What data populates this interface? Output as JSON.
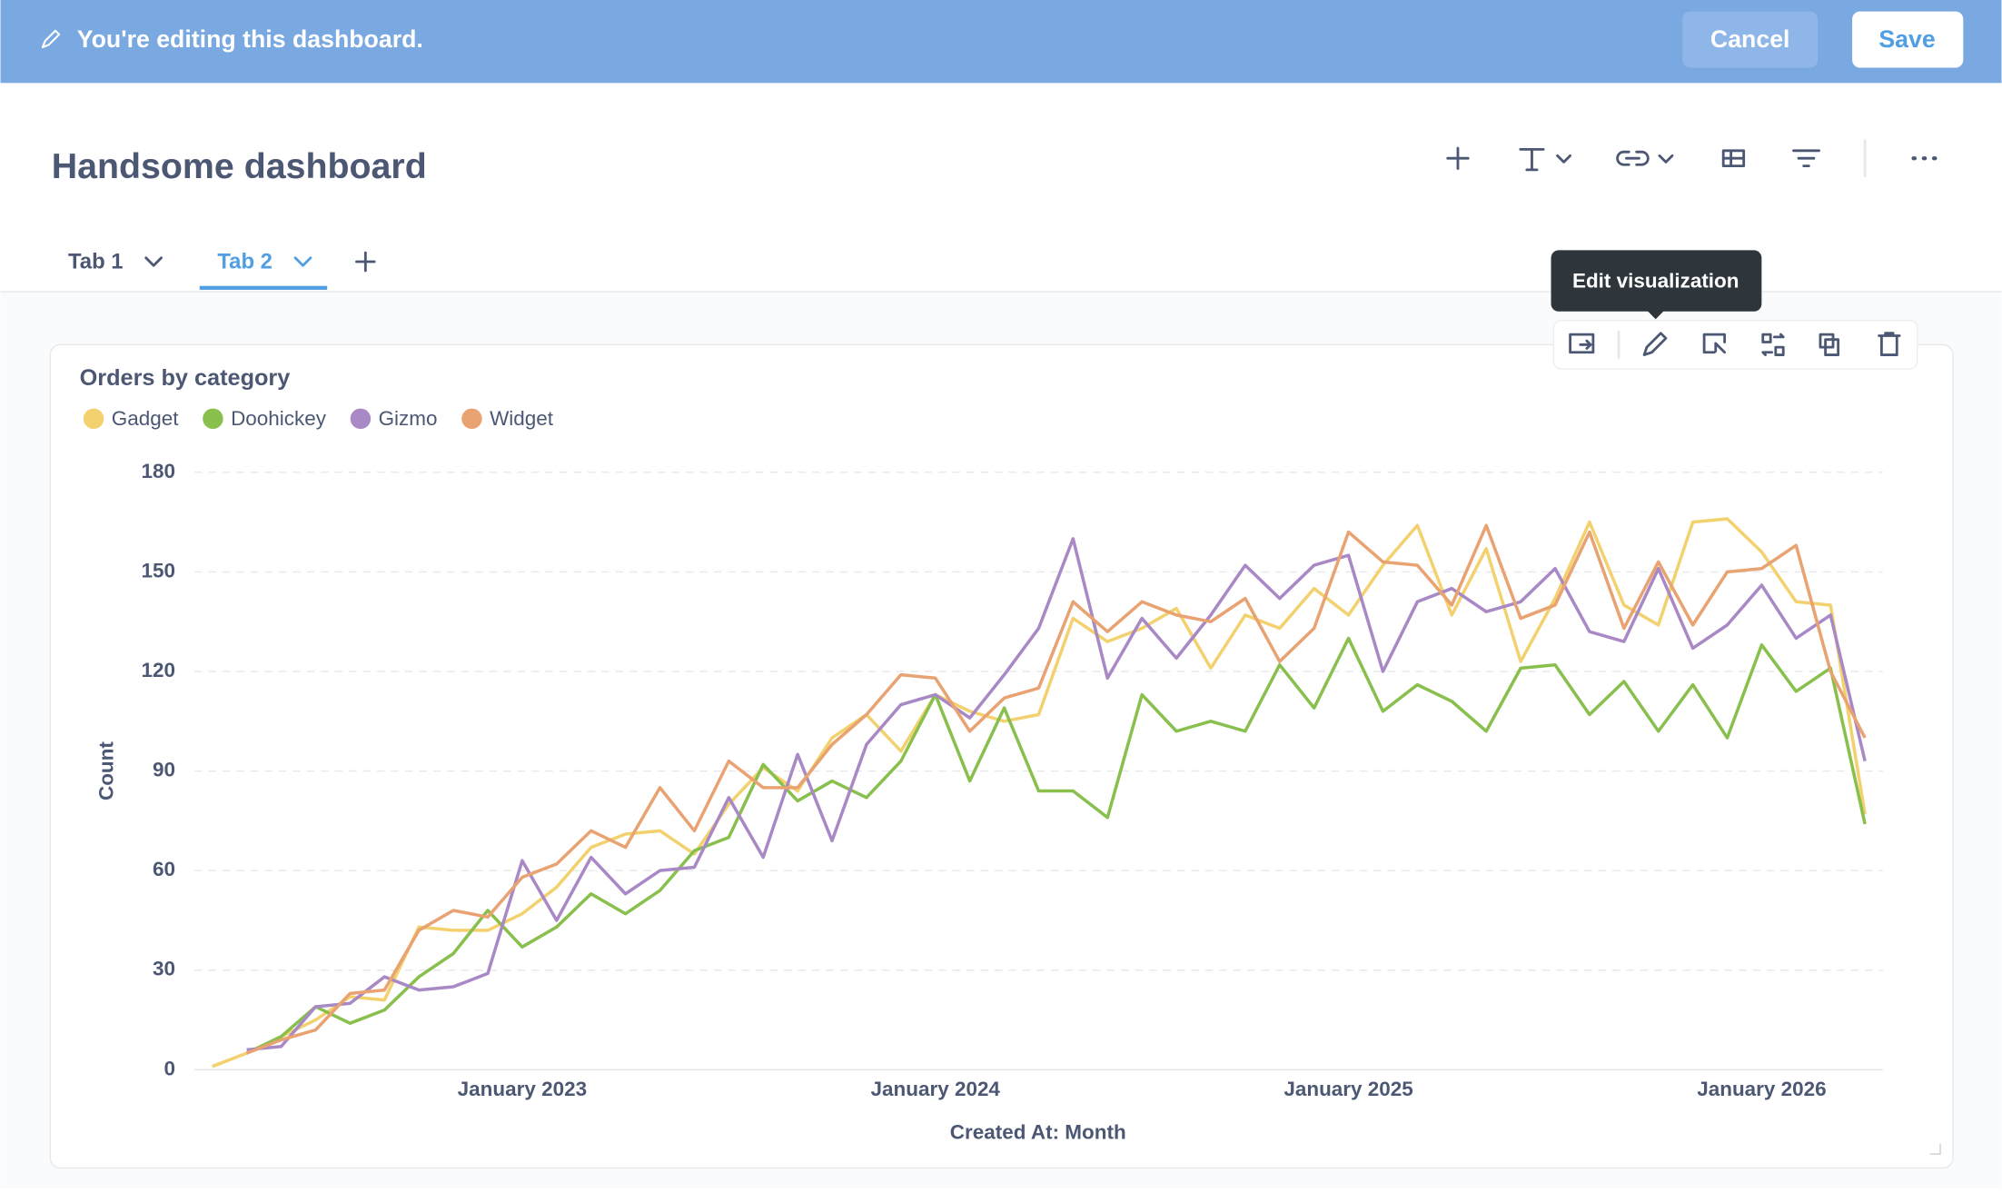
{
  "banner": {
    "text": "You're editing this dashboard.",
    "cancel": "Cancel",
    "save": "Save"
  },
  "header": {
    "title": "Handsome dashboard"
  },
  "tabs": [
    "Tab 1",
    "Tab 2"
  ],
  "tooltip": "Edit visualization",
  "chart_data": {
    "type": "line",
    "title": "Orders by category",
    "x_label": "Created At: Month",
    "y_label": "Count",
    "x": [
      "2022-04",
      "2022-05",
      "2022-06",
      "2022-07",
      "2022-08",
      "2022-09",
      "2022-10",
      "2022-11",
      "2022-12",
      "2023-01",
      "2023-02",
      "2023-03",
      "2023-04",
      "2023-05",
      "2023-06",
      "2023-07",
      "2023-08",
      "2023-09",
      "2023-10",
      "2023-11",
      "2023-12",
      "2024-01",
      "2024-02",
      "2024-03",
      "2024-04",
      "2024-05",
      "2024-06",
      "2024-07",
      "2024-08",
      "2024-09",
      "2024-10",
      "2024-11",
      "2024-12",
      "2025-01",
      "2025-02",
      "2025-03",
      "2025-04",
      "2025-05",
      "2025-06",
      "2025-07",
      "2025-08",
      "2025-09",
      "2025-10",
      "2025-11",
      "2025-12",
      "2026-01",
      "2026-02",
      "2026-03",
      "2026-04"
    ],
    "xticks": [
      {
        "value": "2023-01",
        "label": "January 2023"
      },
      {
        "value": "2024-01",
        "label": "January 2024"
      },
      {
        "value": "2025-01",
        "label": "January 2025"
      },
      {
        "value": "2026-01",
        "label": "January 2026"
      }
    ],
    "ylim": [
      0,
      180
    ],
    "yticks": [
      0,
      30,
      60,
      90,
      120,
      150,
      180
    ],
    "grid": true,
    "series": [
      {
        "name": "Gadget",
        "color": "#f2d16e",
        "values": [
          1,
          5,
          10,
          15,
          22,
          21,
          43,
          42,
          42,
          47,
          55,
          67,
          71,
          72,
          65,
          80,
          91,
          84,
          100,
          107,
          96,
          113,
          108,
          105,
          107,
          136,
          129,
          133,
          139,
          121,
          137,
          133,
          145,
          137,
          152,
          164,
          137,
          157,
          123,
          142,
          165,
          140,
          134,
          165,
          166,
          156,
          141,
          140,
          77
        ]
      },
      {
        "name": "Doohickey",
        "color": "#88bf4d",
        "values": [
          null,
          5,
          10,
          19,
          14,
          18,
          28,
          35,
          48,
          37,
          43,
          53,
          47,
          54,
          66,
          70,
          92,
          81,
          87,
          82,
          93,
          113,
          87,
          109,
          84,
          84,
          76,
          113,
          102,
          105,
          102,
          122,
          109,
          130,
          108,
          116,
          111,
          102,
          121,
          122,
          107,
          117,
          102,
          116,
          100,
          128,
          114,
          121,
          74
        ]
      },
      {
        "name": "Gizmo",
        "color": "#a989c5",
        "values": [
          null,
          6,
          7,
          19,
          20,
          28,
          24,
          25,
          29,
          63,
          45,
          64,
          53,
          60,
          61,
          82,
          64,
          95,
          69,
          98,
          110,
          113,
          106,
          119,
          133,
          160,
          118,
          136,
          124,
          137,
          152,
          142,
          152,
          155,
          120,
          141,
          145,
          138,
          141,
          151,
          132,
          129,
          151,
          127,
          134,
          146,
          130,
          137,
          93
        ]
      },
      {
        "name": "Widget",
        "color": "#e9a271",
        "values": [
          null,
          5,
          9,
          12,
          23,
          24,
          42,
          48,
          46,
          58,
          62,
          72,
          67,
          85,
          72,
          93,
          85,
          85,
          98,
          107,
          119,
          118,
          102,
          112,
          115,
          141,
          132,
          141,
          137,
          135,
          142,
          123,
          133,
          162,
          153,
          152,
          140,
          164,
          136,
          140,
          162,
          133,
          153,
          134,
          150,
          151,
          158,
          120,
          100
        ]
      }
    ]
  }
}
